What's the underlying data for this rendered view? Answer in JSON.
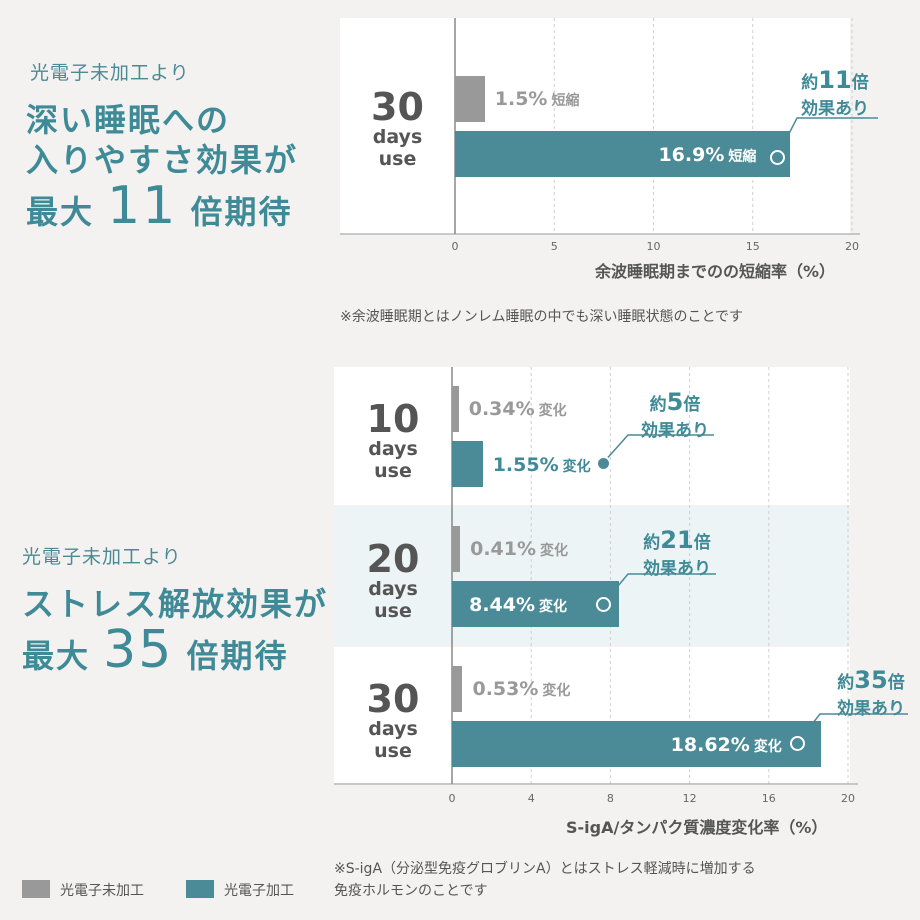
{
  "top_panel": {
    "sub": "光電子未加工より",
    "head_line1": "深い睡眠への",
    "head_line2": "入りやすさ効果が",
    "head_line3_pre": "最大",
    "head_line3_num": "11",
    "head_line3_post": "倍期待"
  },
  "bottom_panel": {
    "sub": "光電子未加工より",
    "head_line1": "ストレス解放効果が",
    "head_line2_pre": "最大",
    "head_line2_num": "35",
    "head_line2_post": "倍期待"
  },
  "chart1_ui": {
    "group_num": "30",
    "group_days": "days",
    "group_use": "use",
    "gray_value": "1.5%",
    "gray_suffix": "短縮",
    "teal_value": "16.9%",
    "teal_suffix": "短縮",
    "callout_pre": "約",
    "callout_num": "11",
    "callout_post": "倍",
    "callout_line2": "効果あり",
    "ticks": [
      "0",
      "5",
      "10",
      "15",
      "20"
    ],
    "axis_title": "余波睡眠期までのの短縮率（%）",
    "note": "※余波睡眠期とはノンレム睡眠の中でも深い睡眠状態のことです"
  },
  "chart2_ui": {
    "groups": [
      {
        "num": "10",
        "days": "days",
        "use": "use",
        "gray_value": "0.34%",
        "gray_suffix": "変化",
        "teal_value": "1.55%",
        "teal_suffix": "変化",
        "callout_pre": "約",
        "callout_num": "5",
        "callout_post": "倍",
        "callout_line2": "効果あり"
      },
      {
        "num": "20",
        "days": "days",
        "use": "use",
        "gray_value": "0.41%",
        "gray_suffix": "変化",
        "teal_value": "8.44%",
        "teal_suffix": "変化",
        "callout_pre": "約",
        "callout_num": "21",
        "callout_post": "倍",
        "callout_line2": "効果あり"
      },
      {
        "num": "30",
        "days": "days",
        "use": "use",
        "gray_value": "0.53%",
        "gray_suffix": "変化",
        "teal_value": "18.62%",
        "teal_suffix": "変化",
        "callout_pre": "約",
        "callout_num": "35",
        "callout_post": "倍",
        "callout_line2": "効果あり"
      }
    ],
    "ticks": [
      "0",
      "4",
      "8",
      "12",
      "16",
      "20"
    ],
    "axis_title": "S-igA/タンパク質濃度変化率（%）",
    "note_line1": "※S-igA（分泌型免疫グロブリンA）とはストレス軽減時に増加する",
    "note_line2": "免疫ホルモンのことです"
  },
  "legend": {
    "gray_label": "光電子未加工",
    "teal_label": "光電子加工",
    "gray_color": "#999999",
    "teal_color": "#4a8b97"
  },
  "chart_data": [
    {
      "type": "bar",
      "orientation": "horizontal",
      "categories": [
        "30 days use"
      ],
      "series": [
        {
          "name": "光電子未加工",
          "values": [
            1.5
          ]
        },
        {
          "name": "光電子加工",
          "values": [
            16.9
          ]
        }
      ],
      "xlabel": "余波睡眠期までのの短縮率（%）",
      "xlim": [
        0,
        20
      ],
      "ticks": [
        0,
        5,
        10,
        15,
        20
      ],
      "grid": true
    },
    {
      "type": "bar",
      "orientation": "horizontal",
      "categories": [
        "10 days use",
        "20 days use",
        "30 days use"
      ],
      "series": [
        {
          "name": "光電子未加工",
          "values": [
            0.34,
            0.41,
            0.53
          ]
        },
        {
          "name": "光電子加工",
          "values": [
            1.55,
            8.44,
            18.62
          ]
        }
      ],
      "xlabel": "S-igA/タンパク質濃度変化率（%）",
      "xlim": [
        0,
        20
      ],
      "ticks": [
        0,
        4,
        8,
        12,
        16,
        20
      ],
      "grid": true
    }
  ]
}
